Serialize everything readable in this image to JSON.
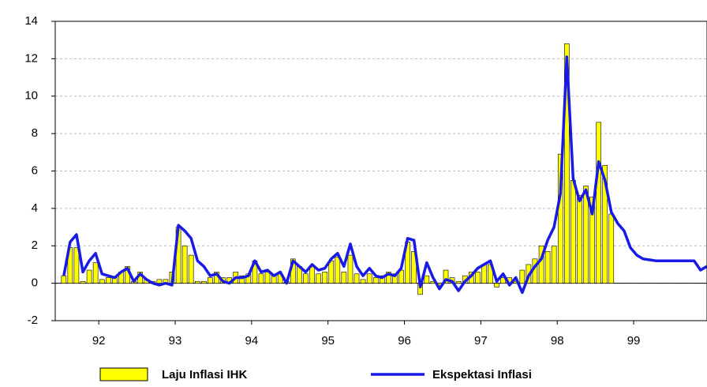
{
  "chart_data": {
    "type": "bar-line",
    "x": [
      91.542,
      91.625,
      91.708,
      91.792,
      91.875,
      91.958,
      92.042,
      92.125,
      92.208,
      92.292,
      92.375,
      92.458,
      92.542,
      92.625,
      92.708,
      92.792,
      92.875,
      92.958,
      93.042,
      93.125,
      93.208,
      93.292,
      93.375,
      93.458,
      93.542,
      93.625,
      93.708,
      93.792,
      93.875,
      93.958,
      94.042,
      94.125,
      94.208,
      94.292,
      94.375,
      94.458,
      94.542,
      94.625,
      94.708,
      94.792,
      94.875,
      94.958,
      95.042,
      95.125,
      95.208,
      95.292,
      95.375,
      95.458,
      95.542,
      95.625,
      95.708,
      95.792,
      95.875,
      95.958,
      96.042,
      96.125,
      96.208,
      96.292,
      96.375,
      96.458,
      96.542,
      96.625,
      96.708,
      96.792,
      96.875,
      96.958,
      97.042,
      97.125,
      97.208,
      97.292,
      97.375,
      97.458,
      97.542,
      97.625,
      97.708,
      97.792,
      97.875,
      97.958,
      98.042,
      98.125,
      98.208,
      98.292,
      98.375,
      98.458,
      98.542,
      98.625,
      98.708,
      98.792,
      98.875,
      98.958,
      99.042,
      99.125,
      99.208,
      99.292,
      99.375,
      99.458,
      99.542,
      99.625,
      99.708,
      99.792,
      99.875,
      99.958
    ],
    "series": [
      {
        "name": "Laju Inflasi IHK",
        "kind": "bar",
        "color": "#ffff00",
        "values": [
          0.4,
          1.9,
          1.9,
          0.1,
          0.7,
          1.1,
          0.2,
          0.3,
          0.3,
          0.6,
          0.9,
          0.1,
          0.6,
          0.2,
          0.1,
          0.2,
          0.2,
          0.6,
          3.0,
          2.0,
          1.5,
          0.1,
          0.1,
          0.3,
          0.6,
          0.3,
          0.3,
          0.6,
          0.4,
          0.5,
          1.2,
          0.5,
          0.6,
          0.4,
          0.5,
          0.1,
          1.3,
          0.9,
          0.5,
          0.9,
          0.5,
          0.6,
          1.2,
          1.4,
          0.6,
          1.5,
          0.5,
          0.2,
          0.5,
          0.3,
          0.4,
          0.6,
          0.5,
          0.7,
          2.2,
          1.7,
          -0.6,
          0.4,
          0.1,
          -0.1,
          0.7,
          0.3,
          0.1,
          0.4,
          0.6,
          0.6,
          1.0,
          1.0,
          -0.2,
          0.3,
          0.3,
          0.1,
          0.7,
          1.0,
          1.3,
          2.0,
          1.7,
          2.0,
          6.9,
          12.8,
          5.5,
          4.7,
          5.2,
          4.6,
          8.6,
          6.3,
          3.7,
          null,
          null,
          null,
          null,
          null,
          null,
          null,
          null,
          null,
          null,
          null,
          null,
          null,
          null,
          null
        ]
      },
      {
        "name": "Ekspektasi Inflasi",
        "kind": "line",
        "color": "#1a1ae6",
        "values": [
          0.4,
          2.2,
          2.6,
          0.6,
          1.2,
          1.6,
          0.5,
          0.4,
          0.3,
          0.6,
          0.8,
          0.1,
          0.5,
          0.2,
          0.0,
          -0.1,
          0.0,
          -0.1,
          3.1,
          2.8,
          2.4,
          1.2,
          0.9,
          0.4,
          0.5,
          0.1,
          0.0,
          0.3,
          0.3,
          0.4,
          1.2,
          0.6,
          0.7,
          0.4,
          0.6,
          0.0,
          1.2,
          0.9,
          0.6,
          1.0,
          0.7,
          0.8,
          1.3,
          1.6,
          0.9,
          2.1,
          0.9,
          0.4,
          0.8,
          0.4,
          0.3,
          0.5,
          0.4,
          0.8,
          2.4,
          2.3,
          -0.2,
          1.1,
          0.3,
          -0.3,
          0.2,
          0.1,
          -0.4,
          0.1,
          0.4,
          0.8,
          1.0,
          1.2,
          0.1,
          0.5,
          -0.1,
          0.3,
          -0.5,
          0.4,
          0.9,
          1.3,
          2.3,
          3.0,
          4.8,
          12.1,
          5.6,
          4.4,
          5.0,
          3.7,
          6.5,
          5.5,
          3.8,
          3.2,
          2.8,
          1.9,
          1.5,
          1.3,
          1.25,
          1.2,
          1.2,
          1.2,
          1.2,
          1.2,
          1.2,
          1.2,
          0.7,
          0.9
        ]
      }
    ],
    "xlim": [
      91.43,
      99.96
    ],
    "xticks": [
      92,
      93,
      94,
      95,
      96,
      97,
      98,
      99
    ],
    "ylim": [
      -2,
      14
    ],
    "yticks": [
      -2,
      0,
      2,
      4,
      6,
      8,
      10,
      12,
      14
    ],
    "grid": true
  }
}
